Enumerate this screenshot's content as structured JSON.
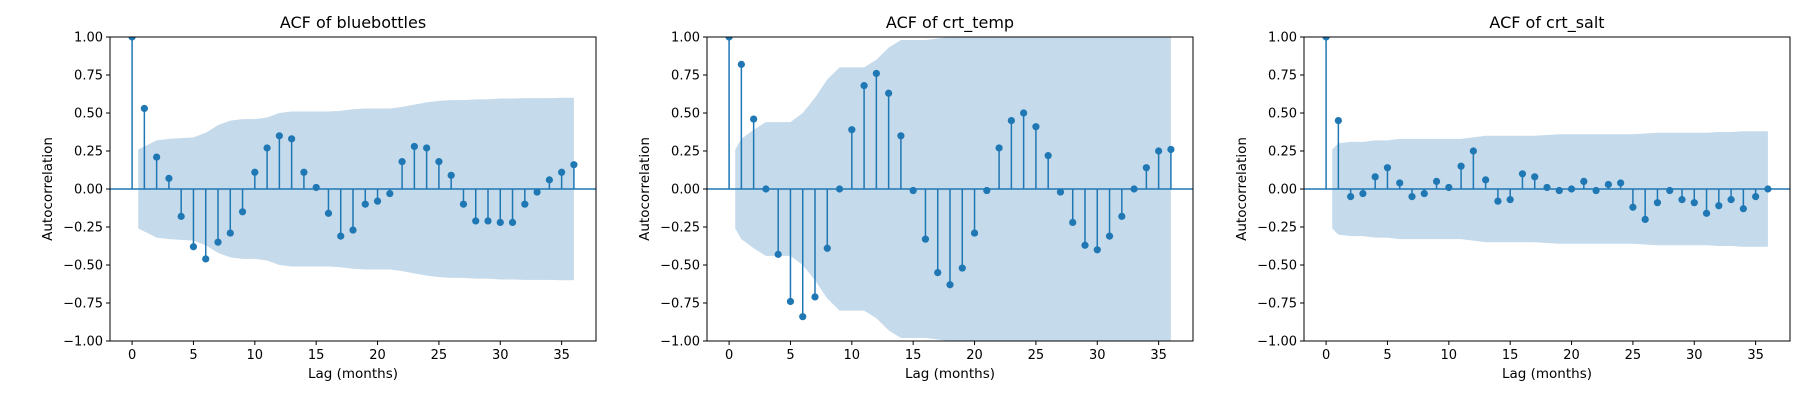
{
  "chart_data": [
    {
      "type": "stem",
      "title": "ACF of bluebottles",
      "xlabel": "Lag (months)",
      "ylabel": "Autocorrelation",
      "xlim": [
        -1.8,
        37.8
      ],
      "ylim": [
        -1.0,
        1.0
      ],
      "xticks": [
        0,
        5,
        10,
        15,
        20,
        25,
        30,
        35
      ],
      "yticks": [
        -1.0,
        -0.75,
        -0.5,
        -0.25,
        0.0,
        0.25,
        0.5,
        0.75,
        1.0
      ],
      "lags": [
        0,
        1,
        2,
        3,
        4,
        5,
        6,
        7,
        8,
        9,
        10,
        11,
        12,
        13,
        14,
        15,
        16,
        17,
        18,
        19,
        20,
        21,
        22,
        23,
        24,
        25,
        26,
        27,
        28,
        29,
        30,
        31,
        32,
        33,
        34,
        35,
        36
      ],
      "values": [
        1.0,
        0.53,
        0.21,
        0.07,
        -0.18,
        -0.38,
        -0.46,
        -0.35,
        -0.29,
        -0.15,
        0.11,
        0.27,
        0.35,
        0.33,
        0.11,
        0.01,
        -0.16,
        -0.31,
        -0.27,
        -0.1,
        -0.08,
        -0.03,
        0.18,
        0.28,
        0.27,
        0.18,
        0.09,
        -0.1,
        -0.21,
        -0.21,
        -0.22,
        -0.22,
        -0.1,
        -0.02,
        0.06,
        0.11,
        0.16
      ],
      "confidence_band": [
        0.26,
        0.28,
        0.32,
        0.33,
        0.335,
        0.34,
        0.37,
        0.42,
        0.45,
        0.46,
        0.46,
        0.47,
        0.5,
        0.51,
        0.51,
        0.51,
        0.51,
        0.515,
        0.525,
        0.53,
        0.53,
        0.53,
        0.54,
        0.555,
        0.57,
        0.58,
        0.585,
        0.585,
        0.59,
        0.59,
        0.595,
        0.595,
        0.598,
        0.598,
        0.598,
        0.6,
        0.6
      ]
    },
    {
      "type": "stem",
      "title": "ACF of crt_temp",
      "xlabel": "Lag (months)",
      "ylabel": "Autocorrelation",
      "xlim": [
        -1.8,
        37.8
      ],
      "ylim": [
        -1.0,
        1.0
      ],
      "xticks": [
        0,
        5,
        10,
        15,
        20,
        25,
        30,
        35
      ],
      "yticks": [
        -1.0,
        -0.75,
        -0.5,
        -0.25,
        0.0,
        0.25,
        0.5,
        0.75,
        1.0
      ],
      "lags": [
        0,
        1,
        2,
        3,
        4,
        5,
        6,
        7,
        8,
        9,
        10,
        11,
        12,
        13,
        14,
        15,
        16,
        17,
        18,
        19,
        20,
        21,
        22,
        23,
        24,
        25,
        26,
        27,
        28,
        29,
        30,
        31,
        32,
        33,
        34,
        35,
        36
      ],
      "values": [
        1.0,
        0.82,
        0.46,
        0.0,
        -0.43,
        -0.74,
        -0.84,
        -0.71,
        -0.39,
        0.0,
        0.39,
        0.68,
        0.76,
        0.63,
        0.35,
        -0.01,
        -0.33,
        -0.55,
        -0.63,
        -0.52,
        -0.29,
        -0.01,
        0.27,
        0.45,
        0.5,
        0.41,
        0.22,
        -0.02,
        -0.22,
        -0.37,
        -0.4,
        -0.31,
        -0.18,
        0.0,
        0.14,
        0.25,
        0.26
      ],
      "confidence_band": [
        0.26,
        0.33,
        0.39,
        0.44,
        0.44,
        0.44,
        0.5,
        0.6,
        0.72,
        0.8,
        0.8,
        0.8,
        0.85,
        0.93,
        0.98,
        0.98,
        0.98,
        0.99,
        1.0,
        1.02,
        1.05,
        1.05,
        1.06,
        1.08,
        1.1,
        1.12,
        1.12,
        1.12,
        1.12,
        1.13,
        1.13,
        1.13,
        1.13,
        1.13,
        1.13,
        1.13,
        1.13
      ]
    },
    {
      "type": "stem",
      "title": "ACF of crt_salt",
      "xlabel": "Lag (months)",
      "ylabel": "Autocorrelation",
      "xlim": [
        -1.8,
        37.8
      ],
      "ylim": [
        -1.0,
        1.0
      ],
      "xticks": [
        0,
        5,
        10,
        15,
        20,
        25,
        30,
        35
      ],
      "yticks": [
        -1.0,
        -0.75,
        -0.5,
        -0.25,
        0.0,
        0.25,
        0.5,
        0.75,
        1.0
      ],
      "lags": [
        0,
        1,
        2,
        3,
        4,
        5,
        6,
        7,
        8,
        9,
        10,
        11,
        12,
        13,
        14,
        15,
        16,
        17,
        18,
        19,
        20,
        21,
        22,
        23,
        24,
        25,
        26,
        27,
        28,
        29,
        30,
        31,
        32,
        33,
        34,
        35,
        36
      ],
      "values": [
        1.0,
        0.45,
        -0.05,
        -0.03,
        0.08,
        0.14,
        0.04,
        -0.05,
        -0.03,
        0.05,
        0.01,
        0.15,
        0.25,
        0.06,
        -0.08,
        -0.07,
        0.1,
        0.08,
        0.01,
        -0.01,
        0.0,
        0.05,
        -0.01,
        0.03,
        0.04,
        -0.12,
        -0.2,
        -0.09,
        -0.01,
        -0.07,
        -0.09,
        -0.16,
        -0.11,
        -0.07,
        -0.13,
        -0.05,
        0.0
      ],
      "confidence_band": [
        0.26,
        0.3,
        0.31,
        0.31,
        0.32,
        0.32,
        0.33,
        0.33,
        0.33,
        0.33,
        0.33,
        0.33,
        0.34,
        0.35,
        0.35,
        0.35,
        0.35,
        0.35,
        0.355,
        0.36,
        0.36,
        0.36,
        0.36,
        0.36,
        0.36,
        0.36,
        0.365,
        0.37,
        0.37,
        0.37,
        0.37,
        0.37,
        0.375,
        0.375,
        0.38,
        0.38,
        0.38
      ]
    }
  ],
  "colors": {
    "stem": "#1f77b4",
    "band": "#c5daeb",
    "zero_line": "#1f77b4",
    "spine": "#000000"
  }
}
